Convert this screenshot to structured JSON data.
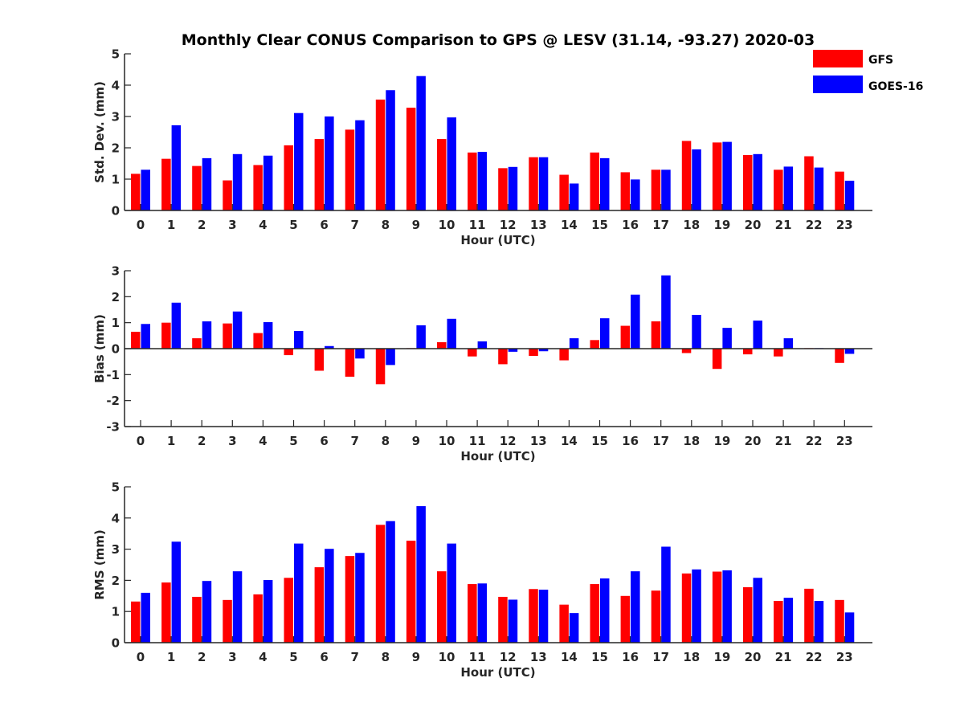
{
  "title": "Monthly Clear CONUS Comparison to GPS @ LESV (31.14, -93.27) 2020-03",
  "legend": {
    "placement": "top-right",
    "entries": [
      {
        "name": "GFS",
        "color": "#ff0000"
      },
      {
        "name": "GOES-16",
        "color": "#0000ff"
      }
    ]
  },
  "chart_data": [
    {
      "type": "bar",
      "ylabel": "Std. Dev. (mm)",
      "xlabel": "Hour (UTC)",
      "ylim": [
        0,
        5
      ],
      "yticks": [
        0,
        1,
        2,
        3,
        4,
        5
      ],
      "categories": [
        "0",
        "1",
        "2",
        "3",
        "4",
        "5",
        "6",
        "7",
        "8",
        "9",
        "10",
        "11",
        "12",
        "13",
        "14",
        "15",
        "16",
        "17",
        "18",
        "19",
        "20",
        "21",
        "22",
        "23"
      ],
      "series": [
        {
          "name": "GFS",
          "color": "#ff0000",
          "values": [
            1.17,
            1.65,
            1.42,
            0.96,
            1.45,
            2.08,
            2.28,
            2.58,
            3.54,
            3.28,
            2.28,
            1.85,
            1.35,
            1.7,
            1.14,
            1.85,
            1.22,
            1.3,
            2.22,
            2.17,
            1.77,
            1.3,
            1.73,
            1.24
          ]
        },
        {
          "name": "GOES-16",
          "color": "#0000ff",
          "values": [
            1.3,
            2.72,
            1.67,
            1.8,
            1.75,
            3.11,
            3.0,
            2.88,
            3.84,
            4.29,
            2.97,
            1.87,
            1.39,
            1.7,
            0.86,
            1.67,
            0.99,
            1.3,
            1.95,
            2.19,
            1.8,
            1.4,
            1.37,
            0.95
          ]
        }
      ]
    },
    {
      "type": "bar",
      "ylabel": "Bias (mm)",
      "xlabel": "Hour (UTC)",
      "ylim": [
        -3,
        3
      ],
      "yticks": [
        -3,
        -2,
        -1,
        0,
        1,
        2,
        3
      ],
      "categories": [
        "0",
        "1",
        "2",
        "3",
        "4",
        "5",
        "6",
        "7",
        "8",
        "9",
        "10",
        "11",
        "12",
        "13",
        "14",
        "15",
        "16",
        "17",
        "18",
        "19",
        "20",
        "21",
        "22",
        "23"
      ],
      "series": [
        {
          "name": "GFS",
          "color": "#ff0000",
          "values": [
            0.65,
            1.0,
            0.4,
            0.97,
            0.6,
            -0.25,
            -0.85,
            -1.08,
            -1.37,
            0.02,
            0.25,
            -0.3,
            -0.6,
            -0.28,
            -0.45,
            0.33,
            0.88,
            1.05,
            -0.17,
            -0.78,
            -0.22,
            -0.3,
            0.02,
            -0.55
          ]
        },
        {
          "name": "GOES-16",
          "color": "#0000ff",
          "values": [
            0.95,
            1.77,
            1.05,
            1.43,
            1.02,
            0.68,
            0.1,
            -0.38,
            -0.63,
            0.9,
            1.15,
            0.28,
            -0.12,
            -0.1,
            0.4,
            1.17,
            2.08,
            2.82,
            1.3,
            0.8,
            1.08,
            0.4,
            0.02,
            -0.2
          ]
        }
      ]
    },
    {
      "type": "bar",
      "ylabel": "RMS (mm)",
      "xlabel": "Hour (UTC)",
      "ylim": [
        0,
        5
      ],
      "yticks": [
        0,
        1,
        2,
        3,
        4,
        5
      ],
      "categories": [
        "0",
        "1",
        "2",
        "3",
        "4",
        "5",
        "6",
        "7",
        "8",
        "9",
        "10",
        "11",
        "12",
        "13",
        "14",
        "15",
        "16",
        "17",
        "18",
        "19",
        "20",
        "21",
        "22",
        "23"
      ],
      "series": [
        {
          "name": "GFS",
          "color": "#ff0000",
          "values": [
            1.32,
            1.93,
            1.47,
            1.37,
            1.55,
            2.08,
            2.42,
            2.78,
            3.78,
            3.27,
            2.29,
            1.88,
            1.47,
            1.72,
            1.22,
            1.88,
            1.5,
            1.67,
            2.22,
            2.28,
            1.78,
            1.34,
            1.73,
            1.37
          ]
        },
        {
          "name": "GOES-16",
          "color": "#0000ff",
          "values": [
            1.6,
            3.24,
            1.98,
            2.29,
            2.01,
            3.18,
            3.01,
            2.88,
            3.9,
            4.38,
            3.18,
            1.9,
            1.38,
            1.7,
            0.95,
            2.06,
            2.29,
            3.08,
            2.35,
            2.32,
            2.08,
            1.44,
            1.34,
            0.97
          ]
        }
      ]
    }
  ]
}
